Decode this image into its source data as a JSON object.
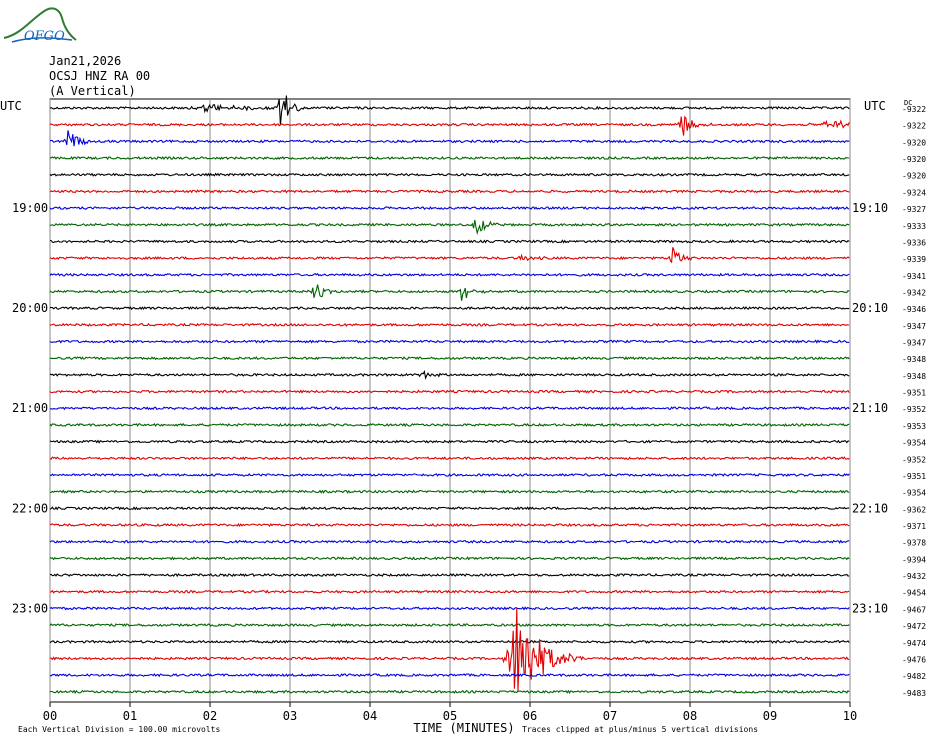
{
  "header": {
    "logo_text": "OFGO",
    "date": "Jan21,2026",
    "station": "OCSJ HNZ RA 00",
    "component": "(A Vertical)"
  },
  "chart_data": {
    "type": "line",
    "description": "helicorder",
    "left_label": "UTC",
    "right_label": "UTC",
    "dc_label": "DC",
    "xlabel": "TIME (MINUTES)",
    "x_ticks": [
      "00",
      "01",
      "02",
      "03",
      "04",
      "05",
      "06",
      "07",
      "08",
      "09",
      "10"
    ],
    "xlim": [
      0,
      10
    ],
    "left_hour_labels": [
      {
        "row": 6,
        "text": "19:00"
      },
      {
        "row": 12,
        "text": "20:00"
      },
      {
        "row": 18,
        "text": "21:00"
      },
      {
        "row": 24,
        "text": "22:00"
      },
      {
        "row": 30,
        "text": "23:00"
      }
    ],
    "right_hour_labels": [
      {
        "row": 6,
        "text": "19:10"
      },
      {
        "row": 12,
        "text": "20:10"
      },
      {
        "row": 18,
        "text": "21:10"
      },
      {
        "row": 24,
        "text": "22:10"
      },
      {
        "row": 30,
        "text": "23:10"
      }
    ],
    "row_colors": [
      "#000000",
      "#e00000",
      "#0000e0",
      "#006400"
    ],
    "dc_offsets": [
      "-9322",
      "-9322",
      "-9320",
      "-9320",
      "-9320",
      "-9324",
      "-9327",
      "-9333",
      "-9336",
      "-9339",
      "-9341",
      "-9342",
      "-9346",
      "-9347",
      "-9347",
      "-9348",
      "-9348",
      "-9351",
      "-9352",
      "-9353",
      "-9354",
      "-9352",
      "-9351",
      "-9354",
      "-9362",
      "-9371",
      "-9378",
      "-9394",
      "-9432",
      "-9454",
      "-9467",
      "-9472",
      "-9474",
      "-9476",
      "-9482",
      "-9483"
    ],
    "events": [
      {
        "row": 0,
        "minute": 2.88,
        "amplitude": 2.6,
        "duration_min": 0.2
      },
      {
        "row": 0,
        "minute": 1.95,
        "amplitude": 0.35,
        "duration_min": 0.9
      },
      {
        "row": 1,
        "minute": 7.88,
        "amplitude": 1.3,
        "duration_min": 0.25
      },
      {
        "row": 1,
        "minute": 9.7,
        "amplitude": 0.4,
        "duration_min": 0.7
      },
      {
        "row": 2,
        "minute": 0.22,
        "amplitude": 1.1,
        "duration_min": 0.25
      },
      {
        "row": 7,
        "minute": 5.32,
        "amplitude": 1.3,
        "duration_min": 0.2
      },
      {
        "row": 9,
        "minute": 7.78,
        "amplitude": 1.1,
        "duration_min": 0.2
      },
      {
        "row": 9,
        "minute": 5.9,
        "amplitude": 0.25,
        "duration_min": 0.3
      },
      {
        "row": 11,
        "minute": 3.3,
        "amplitude": 1.0,
        "duration_min": 0.2
      },
      {
        "row": 11,
        "minute": 5.15,
        "amplitude": 1.0,
        "duration_min": 0.2
      },
      {
        "row": 16,
        "minute": 4.65,
        "amplitude": 0.3,
        "duration_min": 0.3
      },
      {
        "row": 33,
        "minute": 5.82,
        "amplitude": 5.0,
        "duration_min": 0.55
      }
    ],
    "footer_left": "Each Vertical Division =  100.00 microvolts",
    "footer_right": "Traces clipped at plus/minus 5 vertical divisions"
  }
}
